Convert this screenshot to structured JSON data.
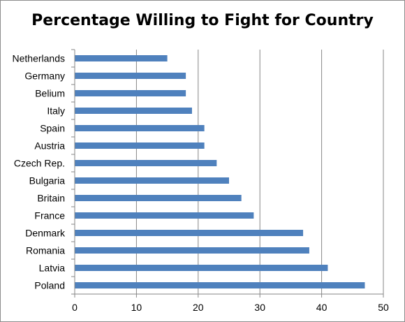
{
  "chart_data": {
    "type": "bar",
    "orientation": "horizontal",
    "title": "Percentage Willing to Fight for Country",
    "xlabel": "",
    "ylabel": "",
    "categories": [
      "Netherlands",
      "Germany",
      "Belium",
      "Italy",
      "Spain",
      "Austria",
      "Czech Rep.",
      "Bulgaria",
      "Britain",
      "France",
      "Denmark",
      "Romania",
      "Latvia",
      "Poland"
    ],
    "values": [
      15,
      18,
      18,
      19,
      21,
      21,
      23,
      25,
      27,
      29,
      37,
      38,
      41,
      47
    ],
    "xlim": [
      0,
      50
    ],
    "xticks": [
      0,
      10,
      20,
      30,
      40,
      50
    ],
    "grid": "vertical",
    "legend": "none",
    "bar_color": "#4f81bd"
  }
}
